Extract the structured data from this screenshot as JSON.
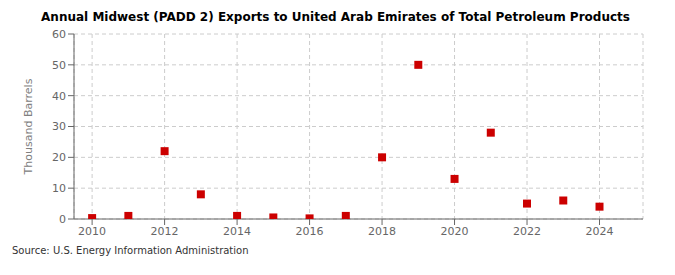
{
  "chart_data": {
    "type": "scatter",
    "title": "Annual Midwest (PADD 2) Exports to United Arab Emirates of Total Petroleum Products",
    "ylabel": "Thousand Barrels",
    "annotations": [
      "Source: U.S. Energy Information Administration"
    ],
    "x": [
      2010,
      2011,
      2012,
      2013,
      2014,
      2015,
      2016,
      2017,
      2018,
      2019,
      2020,
      2021,
      2022,
      2023,
      2024
    ],
    "values": [
      0.3,
      1.0,
      22.0,
      8.0,
      1.0,
      0.5,
      0.2,
      1.0,
      20.0,
      50.0,
      13.0,
      28.0,
      5.0,
      6.0,
      4.0
    ],
    "color": "#cc0000",
    "marker": "square",
    "xlim": [
      2009.5,
      2025.2
    ],
    "xticks": [
      2010,
      2012,
      2014,
      2016,
      2018,
      2020,
      2022,
      2024
    ],
    "ylim": [
      0,
      60
    ],
    "yticks": [
      0,
      10,
      20,
      30,
      40,
      50,
      60
    ],
    "grid": true
  }
}
